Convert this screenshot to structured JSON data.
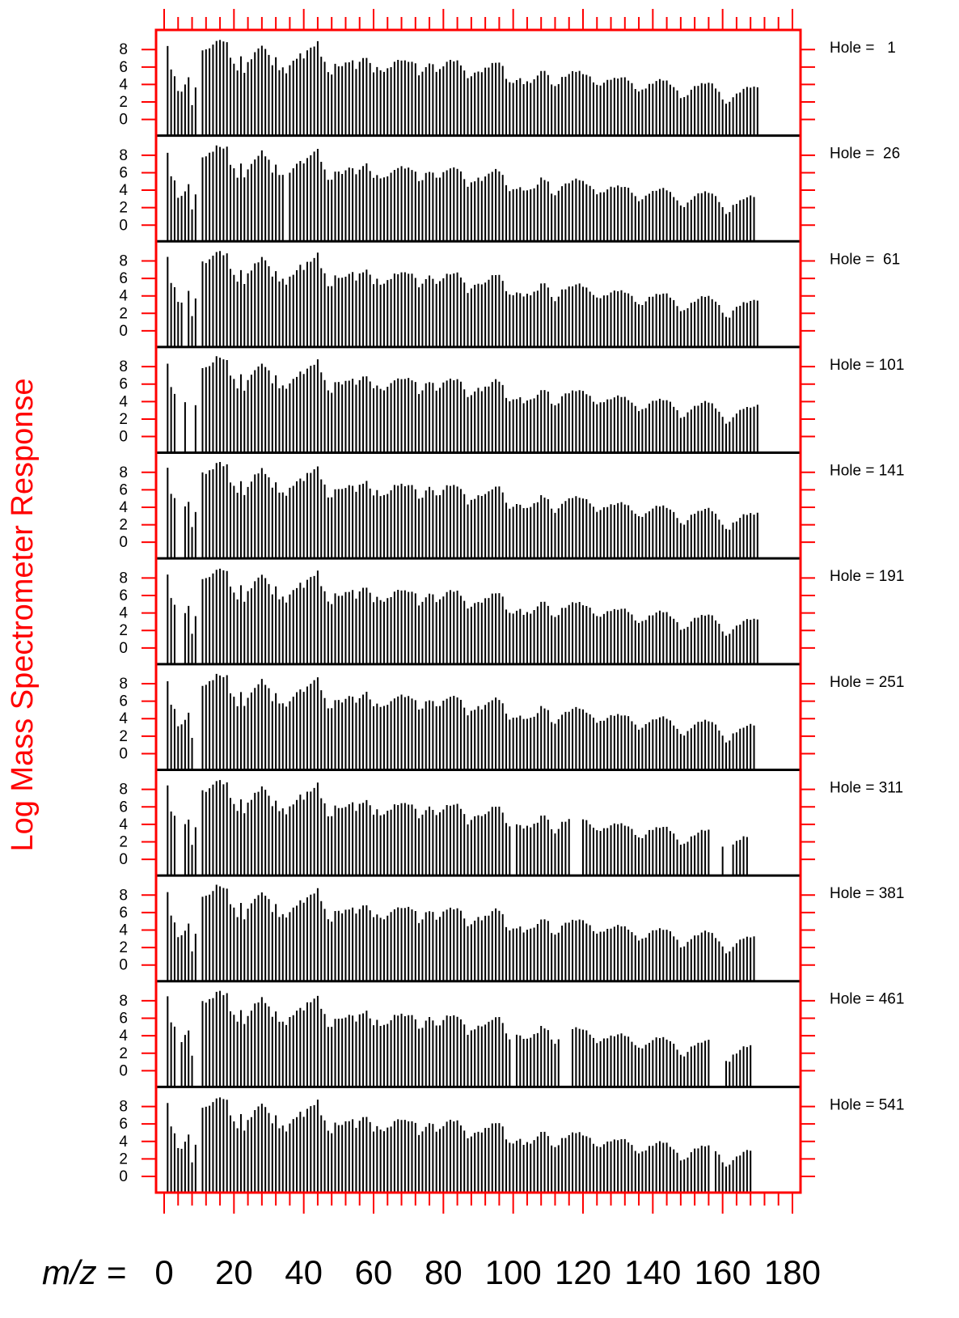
{
  "chart_data": {
    "type": "bar",
    "ylabel": "Log Mass Spectrometer Response",
    "xlabel_prefix": "m/z =",
    "xlim": [
      0,
      180
    ],
    "ylim": [
      -1,
      10
    ],
    "x_ticks": [
      0,
      20,
      40,
      60,
      80,
      100,
      120,
      140,
      160,
      180
    ],
    "y_ticks": [
      0,
      2,
      4,
      6,
      8
    ],
    "colors": {
      "frame": "#ff0000",
      "bars": "#000000",
      "text": "#000000",
      "axis_title": "#ff0000"
    },
    "panel_label_prefix": "Hole =",
    "panels": [
      {
        "label": "Hole =   1",
        "hole": 1,
        "drop": []
      },
      {
        "label": "Hole =  26",
        "hole": 26,
        "drop": [
          35,
          170,
          171,
          172
        ]
      },
      {
        "label": "Hole =  61",
        "hole": 61,
        "drop": [
          6
        ]
      },
      {
        "label": "Hole = 101",
        "hole": 101,
        "drop": [
          4,
          5,
          7,
          8,
          10
        ]
      },
      {
        "label": "Hole = 141",
        "hole": 141,
        "drop": [
          4,
          5,
          171,
          172
        ]
      },
      {
        "label": "Hole = 191",
        "hole": 191,
        "drop": [
          4,
          5,
          171,
          172
        ]
      },
      {
        "label": "Hole = 251",
        "hole": 251,
        "drop": [
          9,
          10,
          170,
          171,
          172
        ]
      },
      {
        "label": "Hole = 311",
        "hole": 311,
        "drop": [
          4,
          5,
          100,
          117,
          118,
          119,
          157,
          158,
          159,
          161,
          162,
          168,
          169,
          170,
          171,
          172,
          173,
          174,
          175
        ]
      },
      {
        "label": "Hole = 381",
        "hole": 381,
        "drop": [
          170,
          171,
          172
        ]
      },
      {
        "label": "Hole = 461",
        "hole": 461,
        "drop": [
          4,
          9,
          100,
          114,
          115,
          116,
          157,
          158,
          159,
          160,
          169,
          170,
          171,
          172,
          173,
          174,
          175
        ]
      },
      {
        "label": "Hole = 541",
        "hole": 541,
        "drop": [
          157,
          169,
          170,
          171,
          172,
          173,
          174,
          175
        ]
      }
    ],
    "profile_note_free": true,
    "base_values": [
      8.4,
      8.4,
      5.6,
      5.0,
      3.2,
      3.3,
      4.0,
      4.7,
      1.7,
      3.6,
      0.0,
      7.9,
      7.9,
      8.2,
      8.5,
      9.1,
      9.1,
      8.8,
      8.9,
      7.0,
      6.5,
      5.6,
      7.1,
      5.4,
      6.5,
      7.0,
      7.7,
      8.0,
      8.5,
      8.0,
      7.5,
      6.2,
      7.0,
      5.7,
      5.9,
      5.4,
      6.2,
      6.6,
      7.0,
      7.5,
      7.1,
      7.9,
      8.1,
      8.4,
      8.9,
      7.3,
      6.6,
      5.3,
      5.2,
      6.3,
      6.2,
      6.1,
      6.4,
      6.6,
      6.7,
      5.9,
      6.6,
      6.9,
      7.1,
      6.4,
      5.5,
      6.0,
      5.5,
      5.5,
      5.8,
      6.1,
      6.6,
      6.7,
      6.8,
      6.7,
      6.7,
      6.6,
      6.3,
      5.1,
      5.4,
      6.1,
      6.4,
      6.2,
      5.5,
      5.7,
      6.2,
      6.6,
      6.7,
      6.7,
      6.7,
      6.3,
      5.6,
      4.6,
      5.0,
      5.3,
      5.6,
      5.4,
      5.8,
      6.0,
      6.4,
      6.6,
      6.5,
      6.0,
      4.7,
      4.2,
      4.3,
      4.5,
      4.6,
      4.1,
      4.3,
      4.3,
      4.6,
      4.9,
      5.6,
      5.5,
      5.2,
      4.0,
      3.7,
      4.1,
      4.8,
      5.0,
      5.2,
      5.4,
      5.5,
      5.5,
      5.3,
      5.1,
      4.8,
      4.3,
      3.9,
      4.0,
      4.2,
      4.4,
      4.6,
      4.7,
      4.8,
      4.8,
      4.7,
      4.5,
      4.1,
      3.6,
      3.2,
      3.3,
      3.6,
      4.0,
      4.2,
      4.4,
      4.5,
      4.5,
      4.4,
      4.1,
      3.7,
      3.2,
      2.5,
      2.5,
      2.9,
      3.4,
      3.7,
      3.9,
      4.1,
      4.2,
      4.2,
      4.0,
      3.6,
      3.1,
      2.4,
      1.8,
      1.9,
      2.6,
      2.9,
      3.2,
      3.5,
      3.6,
      3.7,
      3.7,
      3.8
    ],
    "panel_offsets": [
      0.0,
      -0.45,
      -0.3,
      -0.3,
      -0.45,
      -0.45,
      -0.45,
      -1.0,
      -0.45,
      -0.9,
      -0.75
    ]
  }
}
